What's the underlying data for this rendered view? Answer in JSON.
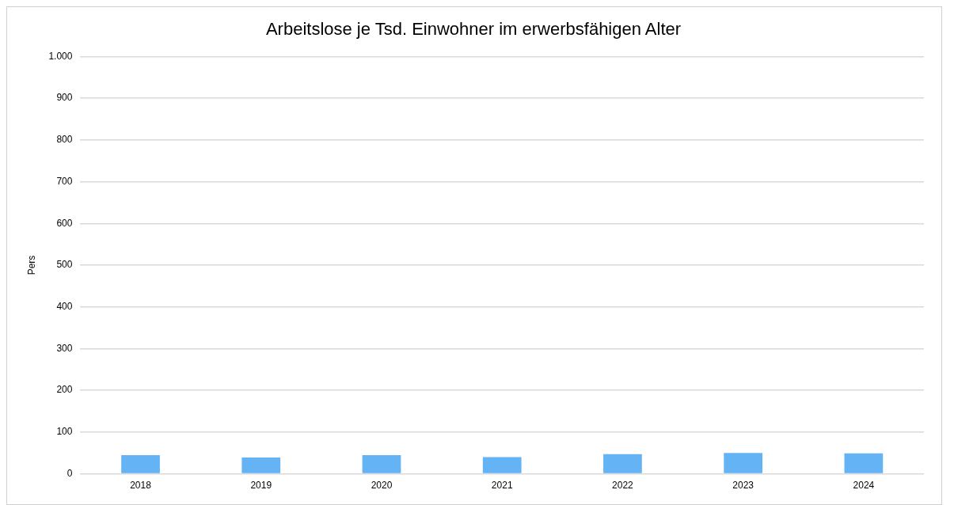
{
  "chart_data": {
    "type": "bar",
    "title": "Arbeitslose je Tsd. Einwohner im erwerbsfähigen Alter",
    "ylabel": "Pers",
    "categories": [
      "2018",
      "2019",
      "2020",
      "2021",
      "2022",
      "2023",
      "2024"
    ],
    "values": [
      45,
      39,
      45,
      40,
      47,
      50,
      49
    ],
    "color": "#63b3f5",
    "ylim": [
      0,
      1000
    ],
    "yticks": [
      0,
      100,
      200,
      300,
      400,
      500,
      600,
      700,
      800,
      900,
      {
        "value": 1000,
        "label": "1.000"
      }
    ],
    "grid": "y",
    "legend": false
  }
}
